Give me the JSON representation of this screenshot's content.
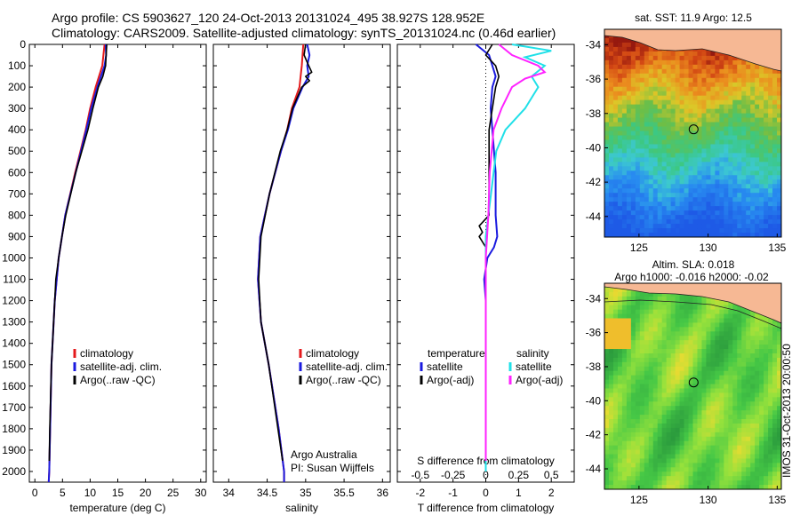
{
  "title_line1": "Argo profile: CS 5903627_120 24-Oct-2013 20131024_495 38.927S 128.952E",
  "title_line2": "Climatology: CARS2009. Satellite-adjusted climatology: synTS_20131024.nc (0.46d earlier)",
  "timestamp": "IMOS 31-Oct-2013 20:00:50",
  "colors": {
    "climatology": "#e41a1c",
    "satellite": "#1a1adf",
    "argo": "#000000",
    "sat_salinity": "#20e0e8",
    "argo_salinity_adj": "#ff22ff"
  },
  "chart_data": [
    {
      "type": "line",
      "name": "temperature",
      "xlabel": "temperature (deg C)",
      "ylabel": "",
      "xlim": [
        -1,
        31
      ],
      "ylim": [
        2050,
        0
      ],
      "xticks": [
        "0",
        "5",
        "10",
        "15",
        "20",
        "25",
        "30"
      ],
      "yticks": [
        "0",
        "100",
        "200",
        "300",
        "400",
        "500",
        "600",
        "700",
        "800",
        "900",
        "1000",
        "1100",
        "1200",
        "1300",
        "1400",
        "1500",
        "1600",
        "1700",
        "1800",
        "1900",
        "2000"
      ],
      "legend": [
        "climatology",
        "satellite-adj. clim.",
        "Argo(..raw -QC)"
      ],
      "series": [
        {
          "name": "climatology",
          "depth": [
            0,
            100,
            200,
            300,
            400,
            600,
            800,
            1000,
            1200,
            1500,
            2000,
            2050
          ],
          "values": [
            12.6,
            12.2,
            11.0,
            10.0,
            9.2,
            7.3,
            5.5,
            4.3,
            3.6,
            3.0,
            2.6,
            2.5
          ]
        },
        {
          "name": "satellite-adj. clim.",
          "depth": [
            0,
            50,
            100,
            200,
            300,
            400,
            600,
            800,
            1000,
            1200,
            1500,
            2000,
            2050
          ],
          "values": [
            12.8,
            12.9,
            12.6,
            11.3,
            10.2,
            9.3,
            7.4,
            5.5,
            4.3,
            3.6,
            3.0,
            2.6,
            2.5
          ]
        },
        {
          "name": "Argo(..raw -QC)",
          "depth": [
            0,
            50,
            100,
            150,
            200,
            250,
            300,
            400,
            600,
            800,
            900,
            1000,
            1100,
            1200,
            1500,
            1800,
            1950
          ],
          "values": [
            13.0,
            12.9,
            12.8,
            12.3,
            11.5,
            11.0,
            10.5,
            9.6,
            7.4,
            5.6,
            4.9,
            4.3,
            3.8,
            3.6,
            3.0,
            2.7,
            2.6
          ]
        }
      ]
    },
    {
      "type": "line",
      "name": "salinity",
      "xlabel": "salinity",
      "xlim": [
        33.8,
        36.1
      ],
      "ylim": [
        2050,
        0
      ],
      "xticks": [
        "34",
        "34.5",
        "35",
        "35.5",
        "36"
      ],
      "legend": [
        "climatology",
        "satellite-adj. clim.",
        "Argo(..raw -QC)"
      ],
      "annotations": [
        "Argo Australia",
        "PI: Susan Wijffels"
      ],
      "series": [
        {
          "name": "climatology",
          "depth": [
            0,
            100,
            200,
            300,
            400,
            500,
            700,
            900,
            1100,
            1300,
            1500,
            1800,
            2000,
            2050
          ],
          "values": [
            34.97,
            34.95,
            34.92,
            34.82,
            34.76,
            34.68,
            34.53,
            34.41,
            34.38,
            34.42,
            34.52,
            34.65,
            34.72,
            34.72
          ]
        },
        {
          "name": "satellite-adj. clim.",
          "depth": [
            0,
            50,
            100,
            150,
            200,
            300,
            400,
            500,
            700,
            900,
            1100,
            1300,
            1500,
            1800,
            2000,
            2050
          ],
          "values": [
            35.02,
            35.05,
            35.02,
            35.04,
            34.96,
            34.84,
            34.77,
            34.68,
            34.53,
            34.41,
            34.38,
            34.42,
            34.52,
            34.65,
            34.72,
            34.72
          ]
        },
        {
          "name": "Argo(..raw -QC)",
          "depth": [
            0,
            50,
            100,
            130,
            150,
            170,
            200,
            300,
            400,
            500,
            700,
            900,
            1100,
            1300,
            1500,
            1800,
            1950
          ],
          "values": [
            35.0,
            34.98,
            35.04,
            35.08,
            35.0,
            35.05,
            34.95,
            34.83,
            34.76,
            34.67,
            34.53,
            34.42,
            34.39,
            34.42,
            34.52,
            34.64,
            34.7
          ]
        }
      ]
    },
    {
      "type": "line",
      "name": "differences",
      "xlabel": "T difference from climatology",
      "xlabel_top": "S difference from climatology",
      "xlim": [
        -2.7,
        2.7
      ],
      "ylim": [
        2050,
        0
      ],
      "xticks": [
        "-2",
        "-1",
        "0",
        "1",
        "2"
      ],
      "xticks_s": [
        "-0.5",
        "-0.25",
        "0",
        "0.25",
        "0.5"
      ],
      "legend_headers": [
        "temperature",
        "salinity"
      ],
      "legend": [
        "satellite",
        "Argo(-adj)",
        "satellite",
        "Argo(-adj)"
      ],
      "series": [
        {
          "name": "temperature satellite",
          "depth": [
            0,
            50,
            100,
            150,
            200,
            300,
            400,
            600,
            800,
            900,
            950,
            1000,
            1100,
            1200,
            1600,
            2000
          ],
          "values": [
            -0.3,
            0.1,
            0.2,
            0.3,
            0.2,
            0.15,
            0.2,
            0.3,
            0.3,
            0.35,
            0.25,
            0.05,
            -0.05,
            0.0,
            0.0,
            0.0
          ]
        },
        {
          "name": "temperature Argo(-adj)",
          "depth": [
            0,
            50,
            100,
            150,
            200,
            300,
            400,
            600,
            800,
            850,
            880,
            900,
            950,
            1000,
            1100,
            1200,
            1600,
            1950
          ],
          "values": [
            0.2,
            0.0,
            0.3,
            0.4,
            0.3,
            0.2,
            0.1,
            0.1,
            0.1,
            -0.2,
            -0.1,
            -0.2,
            0.0,
            0.0,
            0.0,
            0.0,
            0.0,
            0.0
          ]
        },
        {
          "name": "salinity satellite",
          "depth": [
            0,
            30,
            60,
            100,
            150,
            200,
            250,
            300,
            400,
            500,
            700,
            900,
            1100,
            1300,
            1600,
            2000
          ],
          "values": [
            0.2,
            0.5,
            0.3,
            0.45,
            0.35,
            0.4,
            0.35,
            0.3,
            0.15,
            0.08,
            0.04,
            0.0,
            0.0,
            0.0,
            0.0,
            0.0
          ]
        },
        {
          "name": "salinity Argo(-adj)",
          "depth": [
            0,
            50,
            100,
            130,
            160,
            200,
            300,
            400,
            600,
            800,
            1000,
            1200,
            1600,
            1950
          ],
          "values": [
            0.1,
            0.2,
            0.4,
            0.45,
            0.3,
            0.2,
            0.12,
            0.06,
            0.03,
            0.02,
            0.0,
            0.0,
            0.0,
            0.0
          ]
        }
      ]
    },
    {
      "type": "heatmap",
      "name": "sst_map",
      "title": "sat. SST: 11.9 Argo: 12.5",
      "xlim": [
        122.5,
        135.3
      ],
      "ylim": [
        -45.2,
        -33.1
      ],
      "xticks": [
        "125",
        "130",
        "135"
      ],
      "yticks": [
        "-34",
        "-36",
        "-38",
        "-40",
        "-42",
        "-44"
      ],
      "marker": {
        "lon": 128.952,
        "lat": -38.927
      }
    },
    {
      "type": "heatmap",
      "name": "sla_map",
      "title": "Altim. SLA: 0.018",
      "subtitle": "Argo h1000: -0.016 h2000: -0.02",
      "xlim": [
        122.5,
        135.3
      ],
      "ylim": [
        -45.2,
        -33.1
      ],
      "xticks": [
        "125",
        "130",
        "135"
      ],
      "yticks": [
        "-34",
        "-36",
        "-38",
        "-40",
        "-42",
        "-44"
      ],
      "marker": {
        "lon": 128.952,
        "lat": -38.927
      }
    }
  ]
}
